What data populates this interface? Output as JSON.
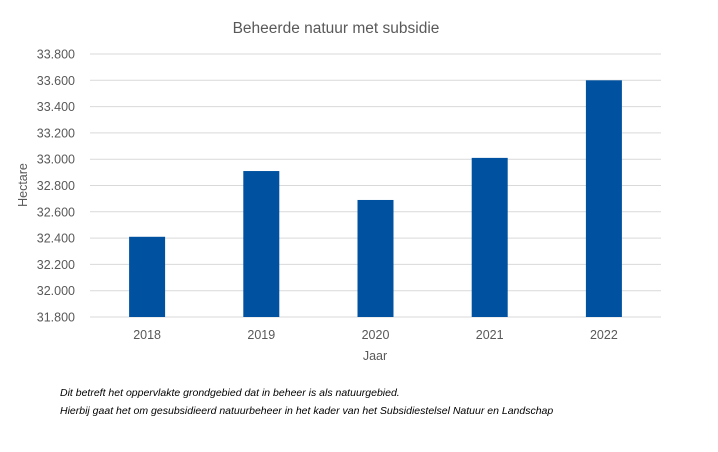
{
  "chart_data": {
    "type": "bar",
    "title": "Beheerde natuur met subsidie",
    "xlabel": "Jaar",
    "ylabel": "Hectare",
    "categories": [
      "2018",
      "2019",
      "2020",
      "2021",
      "2022"
    ],
    "values": [
      32410,
      32910,
      32690,
      33010,
      33600
    ],
    "ylim": [
      31800,
      33800
    ],
    "yticks": [
      31800,
      32000,
      32200,
      32400,
      32600,
      32800,
      33000,
      33200,
      33400,
      33600,
      33800
    ],
    "ytick_labels": [
      "31.800",
      "32.000",
      "32.200",
      "32.400",
      "32.600",
      "32.800",
      "33.000",
      "33.200",
      "33.400",
      "33.600",
      "33.800"
    ],
    "grid": true,
    "bar_color": "#0052A0",
    "grid_color": "#d9d9d9"
  },
  "notes": {
    "line1": "Dit betreft het oppervlakte grondgebied dat in beheer is als natuurgebied.",
    "line2": "Hierbij gaat het om gesubsidieerd natuurbeheer in het kader van het Subsidiestelsel Natuur en Landschap"
  }
}
